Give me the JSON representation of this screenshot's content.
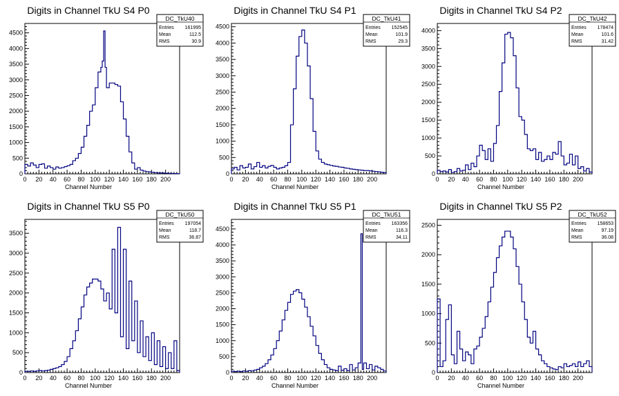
{
  "chart_data": [
    {
      "type": "histogram",
      "title": "Digits in Channel TkU S4 P0",
      "xlabel": "Channel Number",
      "xlim": [
        0,
        220
      ],
      "ylim": [
        0,
        4800
      ],
      "xticks": [
        0,
        20,
        40,
        60,
        80,
        100,
        120,
        140,
        160,
        180,
        200
      ],
      "yticks": [
        500,
        1000,
        1500,
        2000,
        2500,
        3000,
        3500,
        4000,
        4500
      ],
      "stats": {
        "name": "DC_TkU40",
        "entries": "161995",
        "mean": "112.5",
        "rms": "30.9"
      },
      "series": [
        {
          "color": "#000080",
          "x": [
            0,
            4,
            8,
            12,
            16,
            20,
            24,
            28,
            32,
            36,
            40,
            44,
            48,
            52,
            56,
            60,
            64,
            68,
            72,
            76,
            80,
            84,
            88,
            92,
            96,
            100,
            104,
            108,
            110,
            112,
            114,
            116,
            120,
            124,
            128,
            132,
            136,
            140,
            144,
            148,
            152,
            156,
            160,
            164,
            168,
            172,
            176,
            180,
            184,
            188,
            192,
            196,
            200,
            204,
            208,
            212,
            216
          ],
          "values": [
            300,
            250,
            350,
            280,
            200,
            300,
            320,
            180,
            250,
            200,
            150,
            220,
            180,
            200,
            230,
            260,
            300,
            420,
            500,
            650,
            850,
            1200,
            1550,
            2000,
            2200,
            2750,
            3250,
            3400,
            3600,
            4560,
            3400,
            2750,
            2900,
            2900,
            2850,
            2800,
            2300,
            1750,
            1200,
            700,
            350,
            150,
            200,
            120,
            90,
            70,
            60,
            50,
            40,
            30,
            30,
            25,
            20,
            15,
            10,
            10,
            5
          ]
        }
      ]
    },
    {
      "type": "histogram",
      "title": "Digits in Channel TkU S4 P1",
      "xlabel": "Channel Number",
      "xlim": [
        0,
        220
      ],
      "ylim": [
        0,
        4600
      ],
      "xticks": [
        0,
        20,
        40,
        60,
        80,
        100,
        120,
        140,
        160,
        180,
        200
      ],
      "yticks": [
        500,
        1000,
        1500,
        2000,
        2500,
        3000,
        3500,
        4000,
        4500
      ],
      "stats": {
        "name": "DC_TkU41",
        "entries": "152545",
        "mean": "101.9",
        "rms": "29.3"
      },
      "series": [
        {
          "color": "#000080",
          "x": [
            0,
            4,
            8,
            12,
            16,
            20,
            24,
            28,
            32,
            36,
            40,
            44,
            48,
            52,
            56,
            60,
            64,
            68,
            72,
            76,
            80,
            84,
            88,
            92,
            96,
            100,
            104,
            108,
            112,
            116,
            120,
            124,
            128,
            132,
            136,
            140,
            144,
            148,
            152,
            156,
            160,
            164,
            168,
            172,
            176,
            180,
            184,
            188,
            192,
            196,
            200,
            204,
            208,
            212,
            216
          ],
          "values": [
            150,
            200,
            120,
            250,
            180,
            200,
            300,
            150,
            220,
            350,
            200,
            250,
            180,
            230,
            260,
            200,
            150,
            180,
            200,
            250,
            350,
            1500,
            2600,
            3600,
            4200,
            4400,
            4000,
            3300,
            2300,
            1300,
            700,
            450,
            350,
            300,
            280,
            260,
            240,
            230,
            210,
            200,
            180,
            170,
            150,
            140,
            130,
            120,
            110,
            100,
            100,
            90,
            80,
            70,
            60,
            50,
            40
          ]
        }
      ]
    },
    {
      "type": "histogram",
      "title": "Digits in Channel TkU S4 P2",
      "xlabel": "Channel Number",
      "xlim": [
        0,
        220
      ],
      "ylim": [
        0,
        4200
      ],
      "xticks": [
        0,
        20,
        40,
        60,
        80,
        100,
        120,
        140,
        160,
        180,
        200
      ],
      "yticks": [
        500,
        1000,
        1500,
        2000,
        2500,
        3000,
        3500,
        4000
      ],
      "stats": {
        "name": "DC_TkU42",
        "entries": "178474",
        "mean": "101.6",
        "rms": "31.42"
      },
      "series": [
        {
          "color": "#000080",
          "x": [
            0,
            4,
            8,
            12,
            16,
            20,
            24,
            28,
            32,
            36,
            40,
            44,
            48,
            52,
            56,
            60,
            64,
            68,
            72,
            76,
            80,
            84,
            88,
            92,
            96,
            100,
            104,
            108,
            112,
            116,
            120,
            124,
            128,
            132,
            136,
            140,
            144,
            148,
            152,
            156,
            160,
            164,
            168,
            172,
            176,
            180,
            184,
            188,
            192,
            196,
            200,
            204,
            208,
            212,
            216
          ],
          "values": [
            100,
            60,
            80,
            50,
            120,
            40,
            60,
            150,
            80,
            100,
            250,
            120,
            300,
            200,
            500,
            800,
            650,
            400,
            700,
            350,
            850,
            1350,
            2300,
            3100,
            3900,
            3950,
            3800,
            3300,
            2400,
            1600,
            1500,
            1100,
            700,
            650,
            700,
            400,
            600,
            350,
            400,
            500,
            400,
            600,
            550,
            900,
            500,
            250,
            300,
            550,
            250,
            500,
            150,
            200,
            80,
            150,
            50
          ]
        }
      ]
    },
    {
      "type": "histogram",
      "title": "Digits in Channel TkU S5 P0",
      "xlabel": "Channel Number",
      "xlim": [
        0,
        220
      ],
      "ylim": [
        0,
        3850
      ],
      "xticks": [
        0,
        20,
        40,
        60,
        80,
        100,
        120,
        140,
        160,
        180,
        200
      ],
      "yticks": [
        500,
        1000,
        1500,
        2000,
        2500,
        3000,
        3500
      ],
      "stats": {
        "name": "DC_TkU50",
        "entries": "197054",
        "mean": "118.7",
        "rms": "36.87"
      },
      "series": [
        {
          "color": "#000080",
          "x": [
            0,
            4,
            8,
            12,
            16,
            20,
            24,
            28,
            32,
            36,
            40,
            44,
            48,
            52,
            56,
            60,
            64,
            68,
            72,
            76,
            80,
            84,
            88,
            92,
            96,
            100,
            104,
            108,
            112,
            116,
            120,
            124,
            128,
            132,
            136,
            140,
            144,
            148,
            152,
            156,
            160,
            164,
            168,
            172,
            176,
            180,
            184,
            188,
            192,
            196,
            200,
            204,
            208,
            212,
            216
          ],
          "values": [
            30,
            30,
            40,
            30,
            40,
            50,
            40,
            50,
            60,
            80,
            100,
            120,
            150,
            200,
            280,
            400,
            600,
            800,
            1050,
            1350,
            1650,
            1950,
            2150,
            2250,
            2350,
            2350,
            2300,
            2100,
            1800,
            2000,
            1600,
            3100,
            1500,
            3650,
            900,
            3100,
            600,
            2300,
            800,
            1800,
            500,
            1300,
            400,
            900,
            300,
            1000,
            200,
            800,
            150,
            650,
            100,
            500,
            100,
            800,
            50
          ]
        }
      ]
    },
    {
      "type": "histogram",
      "title": "Digits in Channel TkU S5 P1",
      "xlabel": "Channel Number",
      "xlim": [
        0,
        220
      ],
      "ylim": [
        0,
        4800
      ],
      "xticks": [
        0,
        20,
        40,
        60,
        80,
        100,
        120,
        140,
        160,
        180,
        200
      ],
      "yticks": [
        500,
        1000,
        1500,
        2000,
        2500,
        3000,
        3500,
        4000,
        4500
      ],
      "stats": {
        "name": "DC_TkU51",
        "entries": "163356",
        "mean": "116.3",
        "rms": "34.11"
      },
      "series": [
        {
          "color": "#000080",
          "x": [
            0,
            4,
            8,
            12,
            16,
            20,
            24,
            28,
            32,
            36,
            40,
            44,
            48,
            52,
            56,
            60,
            64,
            68,
            72,
            76,
            80,
            84,
            88,
            92,
            96,
            100,
            104,
            108,
            112,
            116,
            120,
            124,
            128,
            132,
            136,
            140,
            144,
            148,
            152,
            156,
            160,
            164,
            168,
            172,
            176,
            180,
            184,
            186,
            188,
            192,
            196,
            200,
            204,
            208,
            212,
            216
          ],
          "values": [
            40,
            30,
            40,
            30,
            50,
            40,
            60,
            50,
            80,
            100,
            150,
            200,
            280,
            400,
            550,
            750,
            1000,
            1300,
            1650,
            1950,
            2200,
            2450,
            2550,
            2600,
            2500,
            2300,
            2050,
            1750,
            1450,
            1150,
            850,
            600,
            400,
            250,
            150,
            100,
            80,
            60,
            200,
            70,
            120,
            60,
            250,
            80,
            150,
            300,
            4350,
            100,
            300,
            120,
            250,
            80,
            200,
            150,
            100,
            50
          ]
        }
      ]
    },
    {
      "type": "histogram",
      "title": "Digits in Channel TkU S5 P2",
      "xlabel": "Channel Number",
      "xlim": [
        0,
        220
      ],
      "ylim": [
        0,
        2600
      ],
      "xticks": [
        0,
        20,
        40,
        60,
        80,
        100,
        120,
        140,
        160,
        180,
        200
      ],
      "yticks": [
        500,
        1000,
        1500,
        2000,
        2500
      ],
      "stats": {
        "name": "DC_TkU52",
        "entries": "158653",
        "mean": "97.19",
        "rms": "36.08"
      },
      "series": [
        {
          "color": "#000080",
          "x": [
            0,
            4,
            8,
            12,
            16,
            20,
            24,
            28,
            32,
            36,
            40,
            44,
            48,
            52,
            56,
            60,
            64,
            68,
            72,
            76,
            80,
            84,
            88,
            92,
            96,
            100,
            104,
            108,
            112,
            116,
            120,
            124,
            128,
            132,
            136,
            140,
            144,
            148,
            152,
            156,
            160,
            164,
            168,
            172,
            176,
            180,
            184,
            188,
            192,
            196,
            200,
            204,
            208,
            212,
            216
          ],
          "values": [
            1250,
            100,
            200,
            900,
            1150,
            300,
            150,
            700,
            400,
            200,
            350,
            300,
            150,
            400,
            450,
            600,
            750,
            950,
            1200,
            1450,
            1700,
            1950,
            2150,
            2300,
            2400,
            2400,
            2300,
            2100,
            1800,
            1500,
            1200,
            900,
            600,
            500,
            700,
            400,
            300,
            200,
            150,
            100,
            80,
            60,
            50,
            100,
            80,
            150,
            100,
            120,
            150,
            100,
            180,
            100,
            150,
            200,
            100
          ]
        }
      ]
    }
  ]
}
